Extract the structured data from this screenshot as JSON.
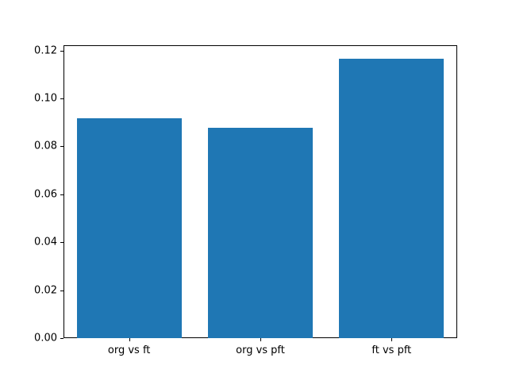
{
  "chart_data": {
    "type": "bar",
    "title": "",
    "xlabel": "",
    "ylabel": "",
    "categories": [
      "org vs ft",
      "org vs pft",
      "ft vs pft"
    ],
    "values": [
      0.0917,
      0.0878,
      0.1165
    ],
    "yticks": [
      "0.00",
      "0.02",
      "0.04",
      "0.06",
      "0.08",
      "0.10",
      "0.12"
    ],
    "ytick_values": [
      0.0,
      0.02,
      0.04,
      0.06,
      0.08,
      0.1,
      0.12
    ],
    "ylim": [
      0.0,
      0.1222
    ],
    "bar_color": "#1f77b4",
    "bar_width_fraction": 0.8,
    "grid": false,
    "legend": null,
    "background_color": "#ffffff",
    "spine_color": "#000000"
  }
}
